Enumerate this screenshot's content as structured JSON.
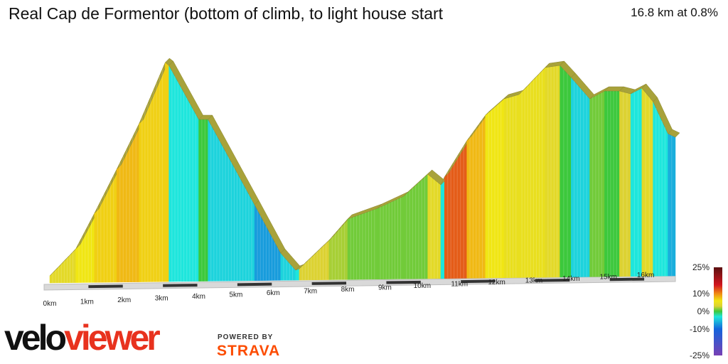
{
  "header": {
    "title": "Real Cap de Formentor (bottom of climb, to light house start",
    "summary": "16.8 km at 0.8%"
  },
  "chart_data": {
    "type": "area",
    "title": "Real Cap de Formentor (bottom of climb, to light house start",
    "distance_km": 16.8,
    "average_gradient_pct": 0.8,
    "x_ticks": [
      "0km",
      "1km",
      "2km",
      "3km",
      "4km",
      "5km",
      "6km",
      "7km",
      "8km",
      "9km",
      "10km",
      "11km",
      "12km",
      "13km",
      "14km",
      "15km",
      "16km"
    ],
    "profile": [
      {
        "km": 0.0,
        "gradient": 4
      },
      {
        "km": 0.7,
        "gradient": 6
      },
      {
        "km": 1.2,
        "gradient": 7
      },
      {
        "km": 1.8,
        "gradient": 8
      },
      {
        "km": 2.4,
        "gradient": 7
      },
      {
        "km": 3.1,
        "gradient": 7
      },
      {
        "km": 3.2,
        "gradient": -3
      },
      {
        "km": 4.0,
        "gradient": 0
      },
      {
        "km": 4.25,
        "gradient": -4
      },
      {
        "km": 5.5,
        "gradient": -7
      },
      {
        "km": 6.2,
        "gradient": -4
      },
      {
        "km": 6.6,
        "gradient": -3
      },
      {
        "km": 6.7,
        "gradient": 3
      },
      {
        "km": 7.5,
        "gradient": 2
      },
      {
        "km": 8.0,
        "gradient": 1
      },
      {
        "km": 8.8,
        "gradient": 1
      },
      {
        "km": 9.5,
        "gradient": 1
      },
      {
        "km": 10.15,
        "gradient": 4
      },
      {
        "km": 10.5,
        "gradient": -3
      },
      {
        "km": 10.6,
        "gradient": 12
      },
      {
        "km": 11.2,
        "gradient": 8
      },
      {
        "km": 11.7,
        "gradient": 6
      },
      {
        "km": 12.2,
        "gradient": 5
      },
      {
        "km": 12.6,
        "gradient": 5
      },
      {
        "km": 13.3,
        "gradient": 4
      },
      {
        "km": 13.7,
        "gradient": 0
      },
      {
        "km": 14.0,
        "gradient": -4
      },
      {
        "km": 14.5,
        "gradient": 1
      },
      {
        "km": 14.9,
        "gradient": 0
      },
      {
        "km": 15.3,
        "gradient": 3
      },
      {
        "km": 15.6,
        "gradient": -3
      },
      {
        "km": 15.9,
        "gradient": 4
      },
      {
        "km": 16.2,
        "gradient": -3
      },
      {
        "km": 16.6,
        "gradient": -6
      },
      {
        "km": 16.8,
        "gradient": 0
      }
    ],
    "elevation_relative": [
      {
        "km": 0.0,
        "elev": 0
      },
      {
        "km": 0.7,
        "elev": 38
      },
      {
        "km": 1.2,
        "elev": 88
      },
      {
        "km": 1.8,
        "elev": 150
      },
      {
        "km": 2.4,
        "elev": 214
      },
      {
        "km": 3.1,
        "elev": 300
      },
      {
        "km": 3.2,
        "elev": 296
      },
      {
        "km": 4.0,
        "elev": 220
      },
      {
        "km": 4.25,
        "elev": 220
      },
      {
        "km": 5.5,
        "elev": 100
      },
      {
        "km": 6.2,
        "elev": 32
      },
      {
        "km": 6.6,
        "elev": 8
      },
      {
        "km": 6.7,
        "elev": 10
      },
      {
        "km": 7.5,
        "elev": 50
      },
      {
        "km": 8.0,
        "elev": 80
      },
      {
        "km": 8.8,
        "elev": 95
      },
      {
        "km": 9.5,
        "elev": 112
      },
      {
        "km": 10.15,
        "elev": 143
      },
      {
        "km": 10.5,
        "elev": 128
      },
      {
        "km": 10.6,
        "elev": 139
      },
      {
        "km": 11.2,
        "elev": 190
      },
      {
        "km": 11.7,
        "elev": 226
      },
      {
        "km": 12.2,
        "elev": 249
      },
      {
        "km": 12.6,
        "elev": 255
      },
      {
        "km": 13.3,
        "elev": 293
      },
      {
        "km": 13.7,
        "elev": 296
      },
      {
        "km": 14.0,
        "elev": 279
      },
      {
        "km": 14.5,
        "elev": 249
      },
      {
        "km": 14.9,
        "elev": 260
      },
      {
        "km": 15.3,
        "elev": 260
      },
      {
        "km": 15.6,
        "elev": 256
      },
      {
        "km": 15.9,
        "elev": 264
      },
      {
        "km": 16.2,
        "elev": 245
      },
      {
        "km": 16.6,
        "elev": 200
      },
      {
        "km": 16.8,
        "elev": 195
      }
    ],
    "gradient_scale": [
      "25%",
      "10%",
      "0%",
      "-10%",
      "-25%"
    ],
    "gradient_scale_values": [
      25,
      10,
      0,
      -10,
      -25
    ],
    "gradient_colors": [
      {
        "value": 25,
        "color": "#5a1010"
      },
      {
        "value": 15,
        "color": "#d2141e"
      },
      {
        "value": 10,
        "color": "#f08c14"
      },
      {
        "value": 6,
        "color": "#f0e614"
      },
      {
        "value": 3,
        "color": "#dcd232"
      },
      {
        "value": 0,
        "color": "#3cc83c"
      },
      {
        "value": -3,
        "color": "#1ee6dc"
      },
      {
        "value": -10,
        "color": "#1464dc"
      },
      {
        "value": -25,
        "color": "#7840b4"
      }
    ]
  },
  "branding": {
    "logo_part1": "velo",
    "logo_part2": "viewer",
    "powered_by": "POWERED BY",
    "strava": "STRAVA"
  }
}
